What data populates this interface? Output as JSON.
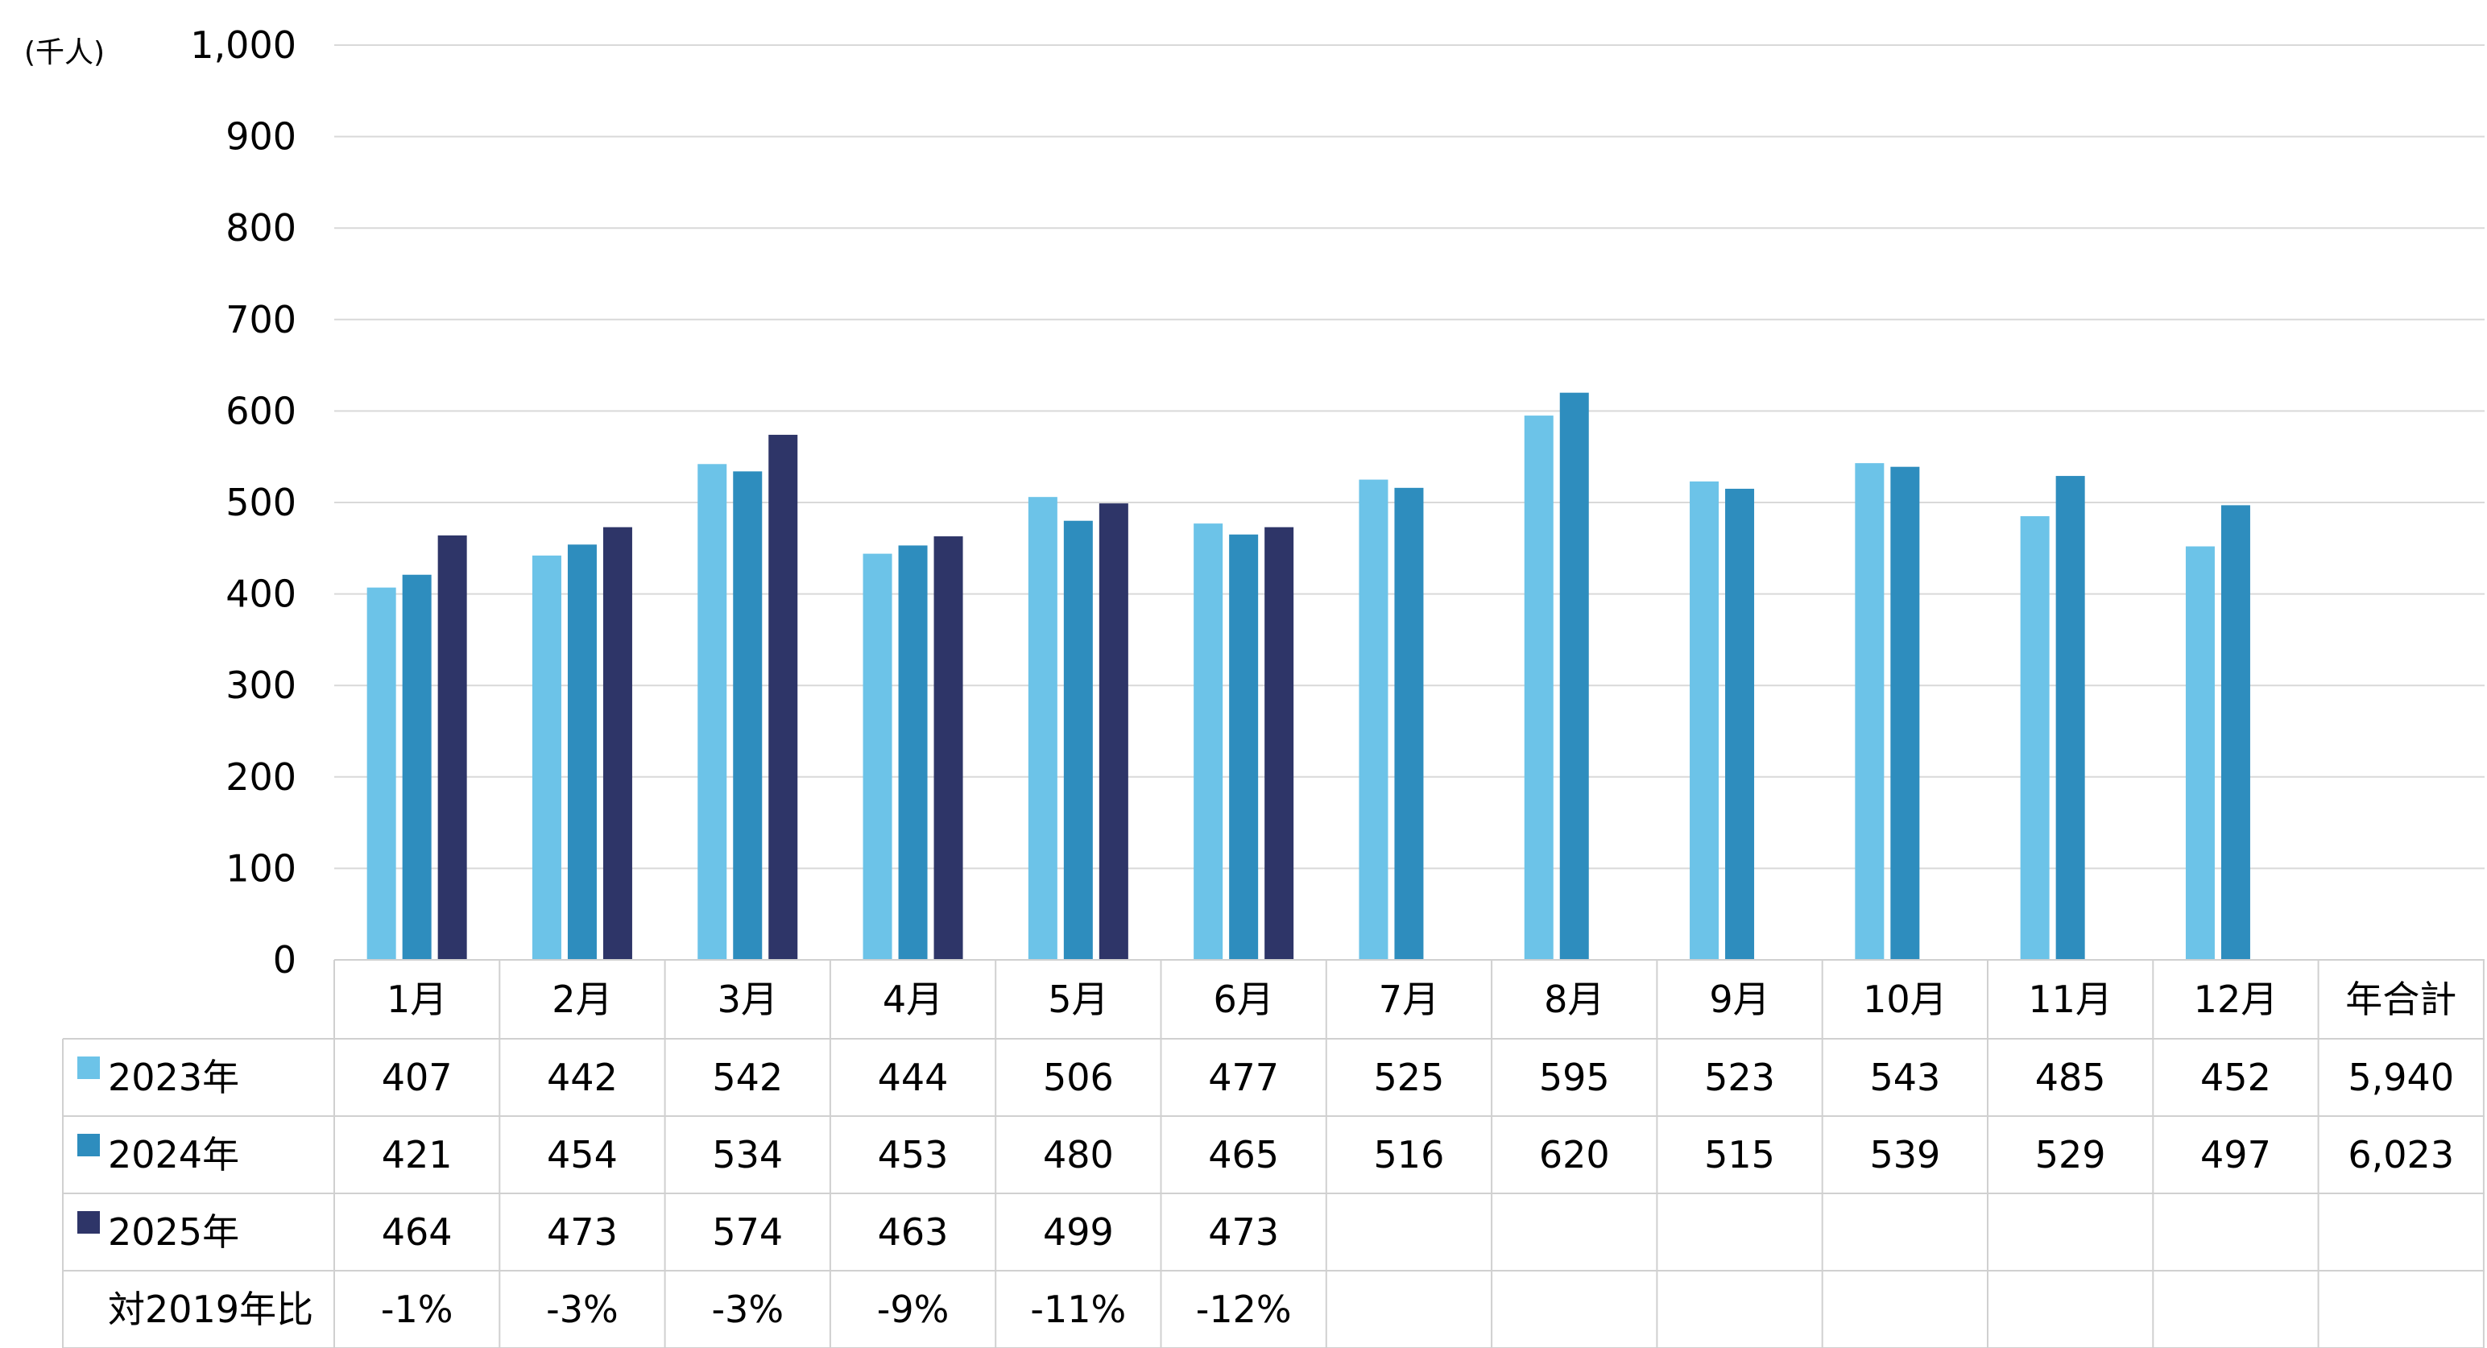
{
  "chart_data": {
    "type": "bar",
    "unit_label": "(千人)",
    "ylim": [
      0,
      1000
    ],
    "yticks": [
      "0",
      "100",
      "200",
      "300",
      "400",
      "500",
      "600",
      "700",
      "800",
      "900",
      "1,000"
    ],
    "grid": true,
    "categories": [
      "1月",
      "2月",
      "3月",
      "4月",
      "5月",
      "6月",
      "7月",
      "8月",
      "9月",
      "10月",
      "11月",
      "12月"
    ],
    "total_header": "年合計",
    "series": [
      {
        "name": "2023年",
        "color": "#6CC3E8",
        "values": [
          407,
          442,
          542,
          444,
          506,
          477,
          525,
          595,
          523,
          543,
          485,
          452
        ],
        "total": "5,940"
      },
      {
        "name": "2024年",
        "color": "#2E8DBE",
        "values": [
          421,
          454,
          534,
          453,
          480,
          465,
          516,
          620,
          515,
          539,
          529,
          497
        ],
        "total": "6,023"
      },
      {
        "name": "2025年",
        "color": "#2E3568",
        "values": [
          464,
          473,
          574,
          463,
          499,
          473,
          null,
          null,
          null,
          null,
          null,
          null
        ],
        "total": ""
      }
    ],
    "ratio_row": {
      "label": "対2019年比",
      "values": [
        "-1%",
        "-3%",
        "-3%",
        "-9%",
        "-11%",
        "-12%",
        "",
        "",
        "",
        "",
        "",
        "",
        ""
      ]
    }
  }
}
